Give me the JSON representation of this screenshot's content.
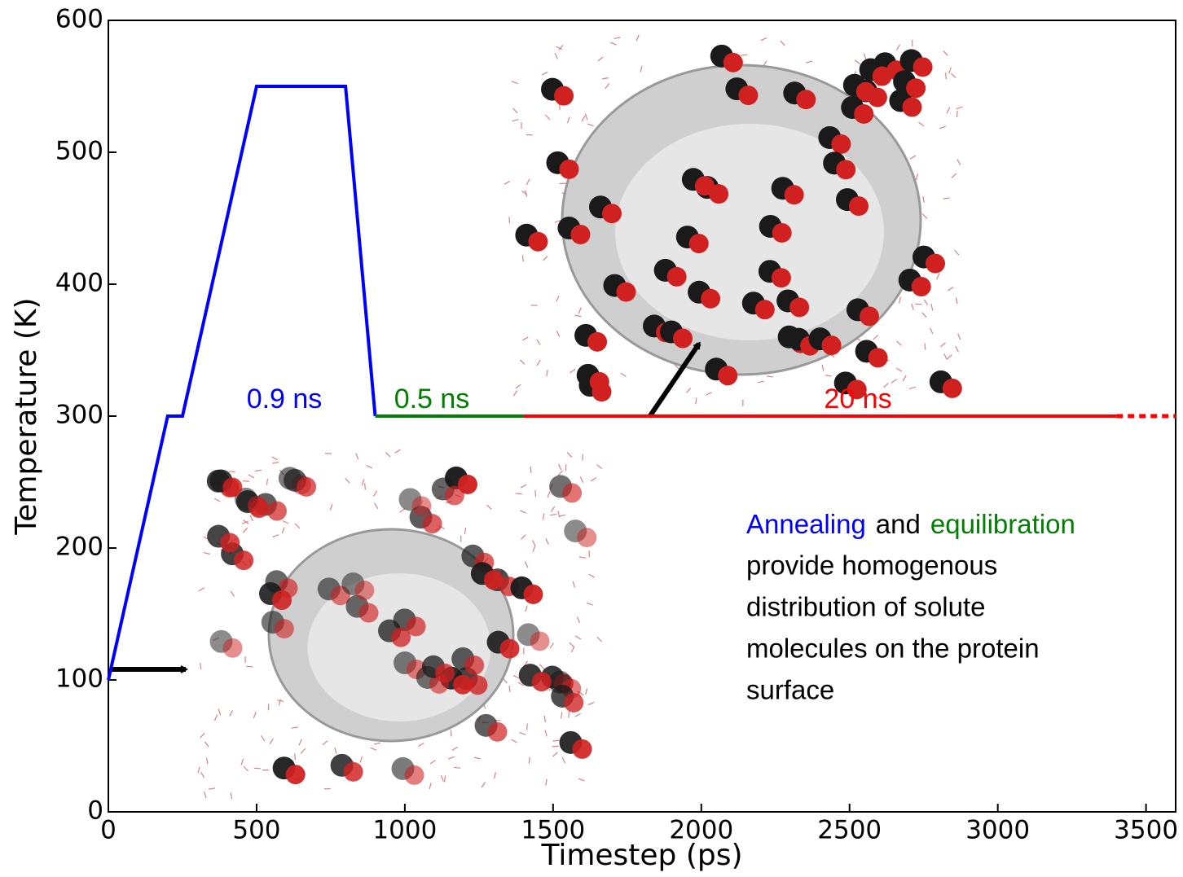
{
  "chart_data": {
    "type": "line",
    "x_label": "Timestep (ps)",
    "y_label": "Temperature (K)",
    "xlim": [
      0,
      3600
    ],
    "ylim": [
      0,
      600
    ],
    "xticks": [
      0,
      500,
      1000,
      1500,
      2000,
      2500,
      3000,
      3500
    ],
    "yticks": [
      0,
      100,
      200,
      300,
      400,
      500,
      600
    ],
    "series": [
      {
        "color": "#0000ff",
        "x": [
          0,
          200,
          250,
          500,
          800,
          900
        ],
        "values": [
          100,
          300,
          300,
          550,
          550,
          300
        ]
      },
      {
        "color": "#008000",
        "x": [
          900,
          1400
        ],
        "values": [
          300,
          300
        ]
      },
      {
        "color": "#ff0000",
        "x": [
          1400,
          3400
        ],
        "values": [
          300,
          300
        ]
      },
      {
        "color": "#ff0000",
        "dashed": true,
        "x": [
          3400,
          3600
        ],
        "values": [
          300,
          300
        ]
      }
    ],
    "annotations": [
      {
        "text": "0.9 ns",
        "color": "#0000ff"
      },
      {
        "text": "0.5 ns",
        "color": "#008000"
      },
      {
        "text": "20 ns",
        "color": "#ff0000"
      }
    ],
    "note_spans": [
      {
        "text": "Annealing",
        "color": "#0000ff"
      },
      {
        "text": "and",
        "color": "#000000"
      },
      {
        "text": "equilibration",
        "color": "#008000"
      }
    ],
    "note_lines": [
      "provide homogenous",
      "distribution of solute",
      "molecules on the protein",
      "surface"
    ]
  }
}
